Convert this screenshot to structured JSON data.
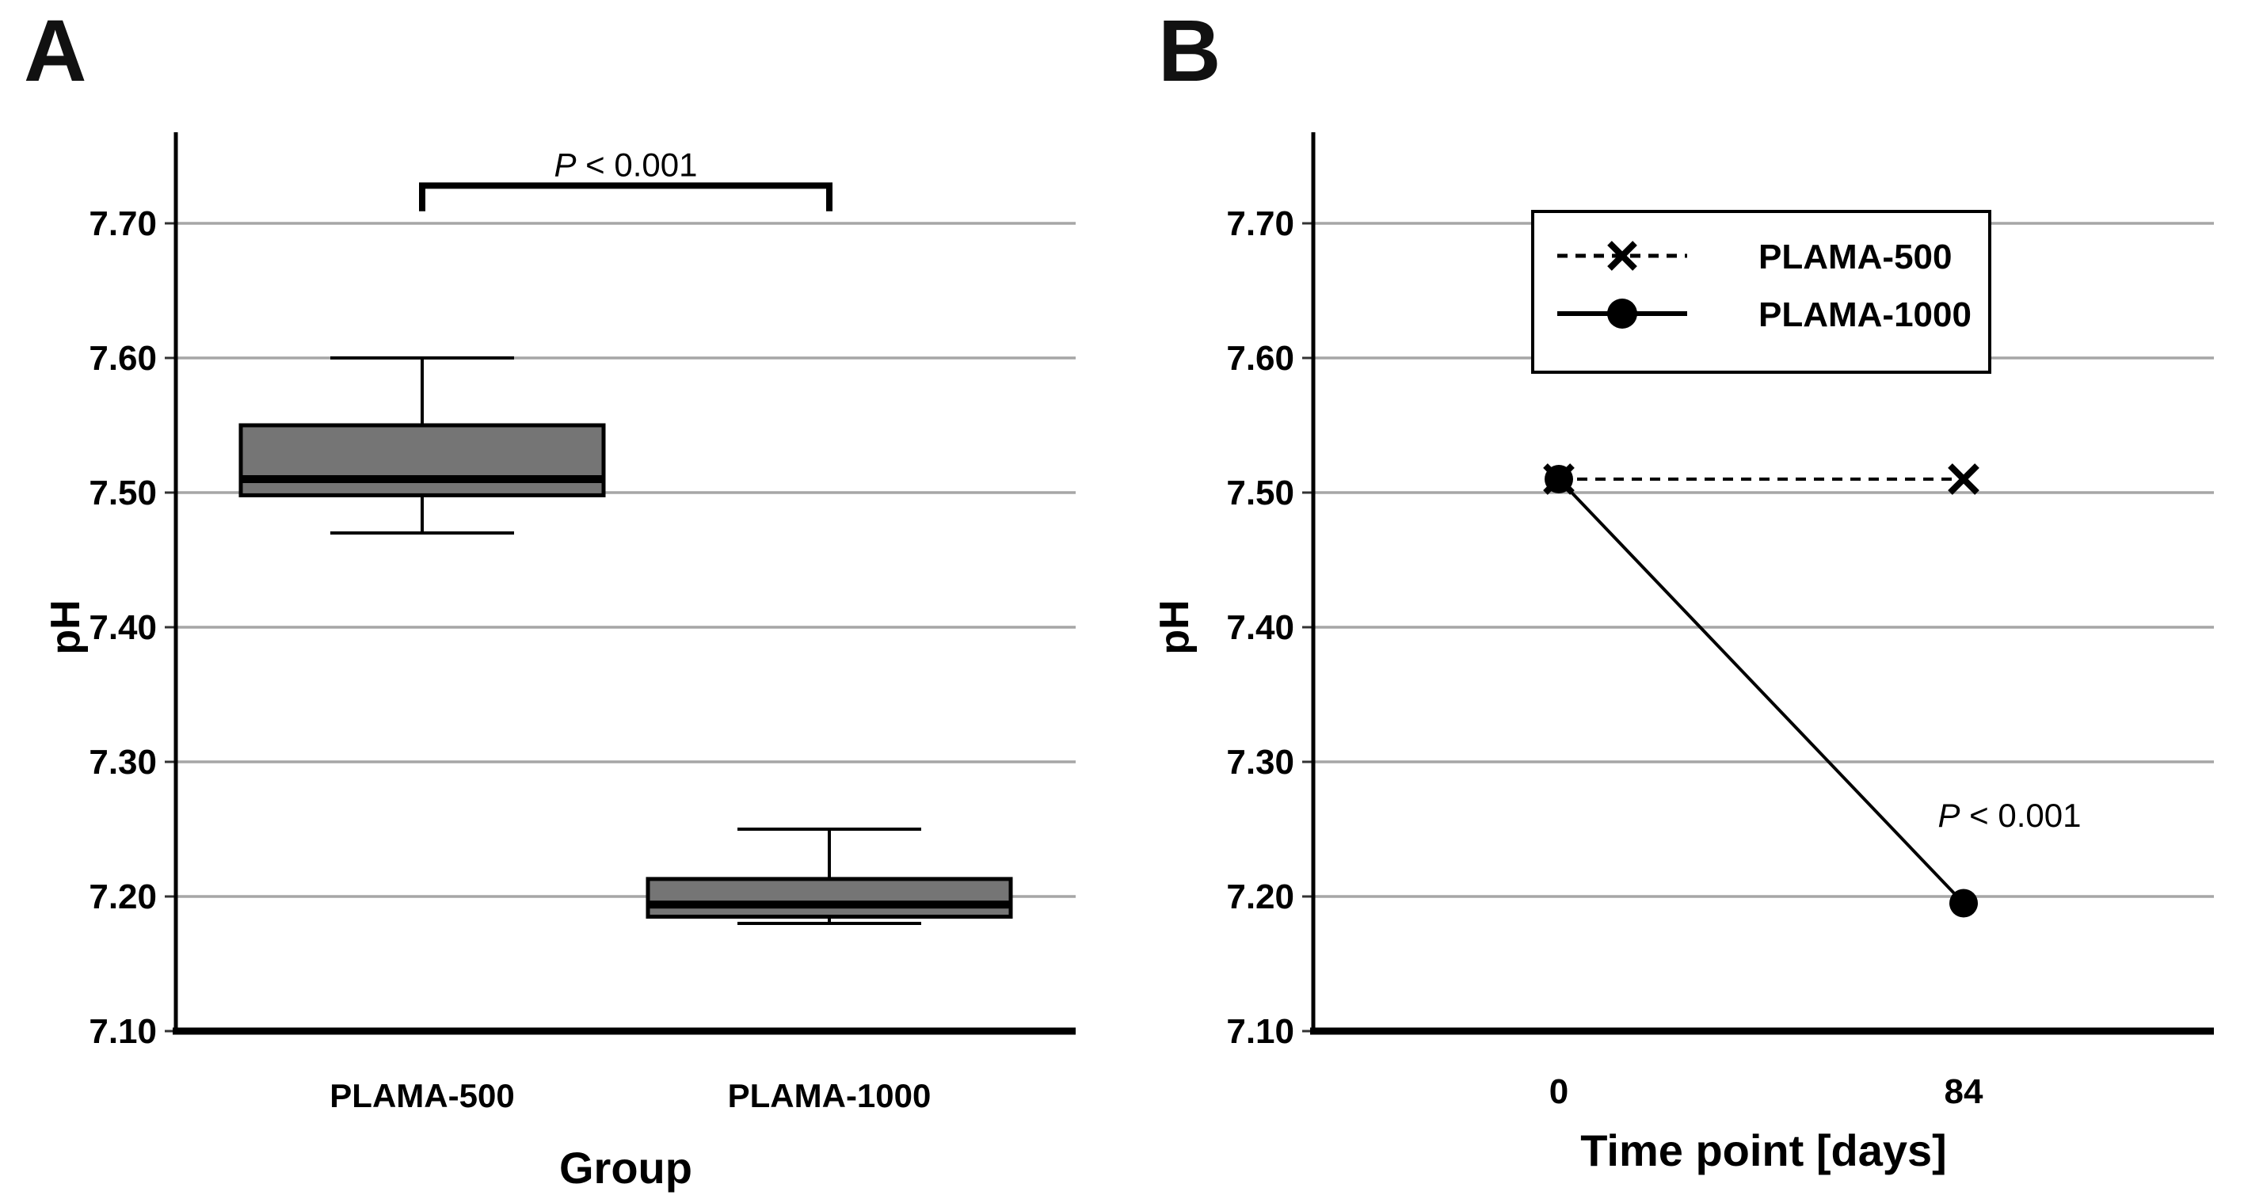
{
  "figure_title": "pH comparison figure",
  "colors": {
    "background": "#ffffff",
    "box_fill": "#757575",
    "grid_line": "#a6a6a6",
    "axis": "#000000",
    "text": "#000000",
    "legend_background": "#ffffff"
  },
  "panels": [
    {
      "label": "A",
      "chart_data": {
        "type": "box",
        "title": "",
        "xlabel": "Group",
        "ylabel": "pH",
        "ylim": [
          7.1,
          7.77
        ],
        "yticks": [
          7.1,
          7.2,
          7.3,
          7.4,
          7.5,
          7.6,
          7.7
        ],
        "grid": true,
        "categories": [
          "PLAMA-500",
          "PLAMA-1000"
        ],
        "boxes": [
          {
            "label": "PLAMA-500",
            "whisker_low": 7.47,
            "q1": 7.498,
            "median": 7.51,
            "q3": 7.55,
            "whisker_high": 7.6
          },
          {
            "label": "PLAMA-1000",
            "whisker_low": 7.18,
            "q1": 7.185,
            "median": 7.194,
            "q3": 7.213,
            "whisker_high": 7.25
          }
        ],
        "significance_bracket": {
          "text": "P < 0.001",
          "between": [
            "PLAMA-500",
            "PLAMA-1000"
          ],
          "bar_y": 7.728,
          "tick_bottom_y": 7.709
        }
      }
    },
    {
      "label": "B",
      "chart_data": {
        "type": "line",
        "title": "",
        "xlabel": "Time point [days]",
        "ylabel": "pH",
        "ylim": [
          7.1,
          7.77
        ],
        "yticks": [
          7.1,
          7.2,
          7.3,
          7.4,
          7.5,
          7.6,
          7.7
        ],
        "grid": true,
        "x_categories": [
          "0",
          "84"
        ],
        "series": [
          {
            "name": "PLAMA-500",
            "values": [
              7.51,
              7.51
            ],
            "line_style": "dashed",
            "marker": "x"
          },
          {
            "name": "PLAMA-1000",
            "values": [
              7.51,
              7.195
            ],
            "line_style": "solid",
            "marker": "circle"
          }
        ],
        "legend": {
          "position": "top-center",
          "entries": [
            "PLAMA-500",
            "PLAMA-1000"
          ]
        },
        "annotation": {
          "text": "P < 0.001",
          "x_category_index": 1,
          "y": 7.26
        }
      }
    }
  ]
}
